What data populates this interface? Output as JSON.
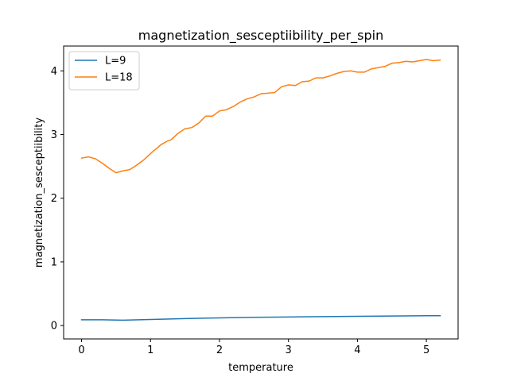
{
  "chart_data": {
    "type": "line",
    "title": "magnetization_sesceptiibility_per_spin",
    "xlabel": "temperature",
    "ylabel": "magnetization_sesceptiibility",
    "xlim": [
      -0.26,
      5.46
    ],
    "ylim": [
      -0.21,
      4.39
    ],
    "xticks": [
      0,
      1,
      2,
      3,
      4,
      5
    ],
    "yticks": [
      0,
      1,
      2,
      3,
      4
    ],
    "grid": false,
    "legend_position": "top-left",
    "series": [
      {
        "name": "L=9",
        "color": "#1f77b4",
        "x": [
          0,
          0.3,
          0.6,
          1.0,
          1.5,
          2.0,
          2.5,
          3.0,
          3.5,
          4.0,
          4.5,
          5.0,
          5.2
        ],
        "y": [
          0.09,
          0.09,
          0.085,
          0.095,
          0.11,
          0.12,
          0.13,
          0.135,
          0.14,
          0.145,
          0.15,
          0.155,
          0.155
        ]
      },
      {
        "name": "L=18",
        "color": "#ff7f0e",
        "x": [
          0,
          0.1,
          0.2,
          0.3,
          0.4,
          0.5,
          0.6,
          0.7,
          0.8,
          0.9,
          1.0,
          1.05,
          1.1,
          1.15,
          1.2,
          1.25,
          1.3,
          1.4,
          1.5,
          1.6,
          1.7,
          1.8,
          1.9,
          2.0,
          2.1,
          2.2,
          2.3,
          2.4,
          2.5,
          2.6,
          2.7,
          2.8,
          2.9,
          3.0,
          3.1,
          3.2,
          3.3,
          3.4,
          3.5,
          3.6,
          3.7,
          3.8,
          3.9,
          4.0,
          4.1,
          4.2,
          4.3,
          4.4,
          4.5,
          4.6,
          4.7,
          4.8,
          4.9,
          5.0,
          5.1,
          5.2
        ],
        "y": [
          2.63,
          2.65,
          2.62,
          2.55,
          2.47,
          2.4,
          2.43,
          2.45,
          2.52,
          2.6,
          2.7,
          2.75,
          2.79,
          2.84,
          2.87,
          2.9,
          2.92,
          3.02,
          3.09,
          3.11,
          3.18,
          3.29,
          3.29,
          3.37,
          3.39,
          3.44,
          3.51,
          3.56,
          3.59,
          3.64,
          3.65,
          3.66,
          3.75,
          3.78,
          3.77,
          3.83,
          3.84,
          3.89,
          3.89,
          3.92,
          3.96,
          3.99,
          4.0,
          3.98,
          3.98,
          4.03,
          4.05,
          4.07,
          4.12,
          4.13,
          4.15,
          4.14,
          4.16,
          4.18,
          4.16,
          4.17
        ]
      }
    ]
  }
}
